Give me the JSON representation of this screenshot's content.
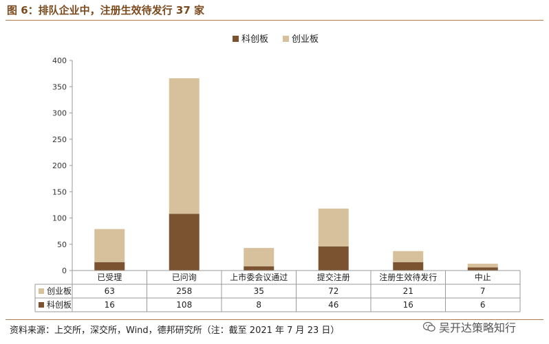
{
  "title": "图 6：排队企业中，注册生效待发行 37 家",
  "source": "资料来源：上交所，深交所，Wind，德邦研究所（注：截至 2021 年 7 月 23 日）",
  "watermark": {
    "text": "吴开达策略知行",
    "icon": "wechat-icon"
  },
  "colors": {
    "kechuang": "#7b5330",
    "chuangye": "#d6c19c",
    "accent": "#7a4a1e"
  },
  "chart_data": {
    "type": "bar",
    "stacked": true,
    "categories": [
      "已受理",
      "已问询",
      "上市委会议通过",
      "提交注册",
      "注册生效待发行",
      "中止"
    ],
    "series": [
      {
        "name": "科创板",
        "values": [
          16,
          108,
          8,
          46,
          16,
          6
        ],
        "color": "#7b5330"
      },
      {
        "name": "创业板",
        "values": [
          63,
          258,
          35,
          72,
          21,
          7
        ],
        "color": "#d6c19c"
      }
    ],
    "ylim": [
      0,
      400
    ],
    "yticks": [
      "0",
      "50",
      "100",
      "150",
      "200",
      "250",
      "300",
      "350",
      "400"
    ],
    "legend_position": "top-center",
    "data_table": true,
    "table_rows": [
      "创业板",
      "科创板"
    ]
  }
}
